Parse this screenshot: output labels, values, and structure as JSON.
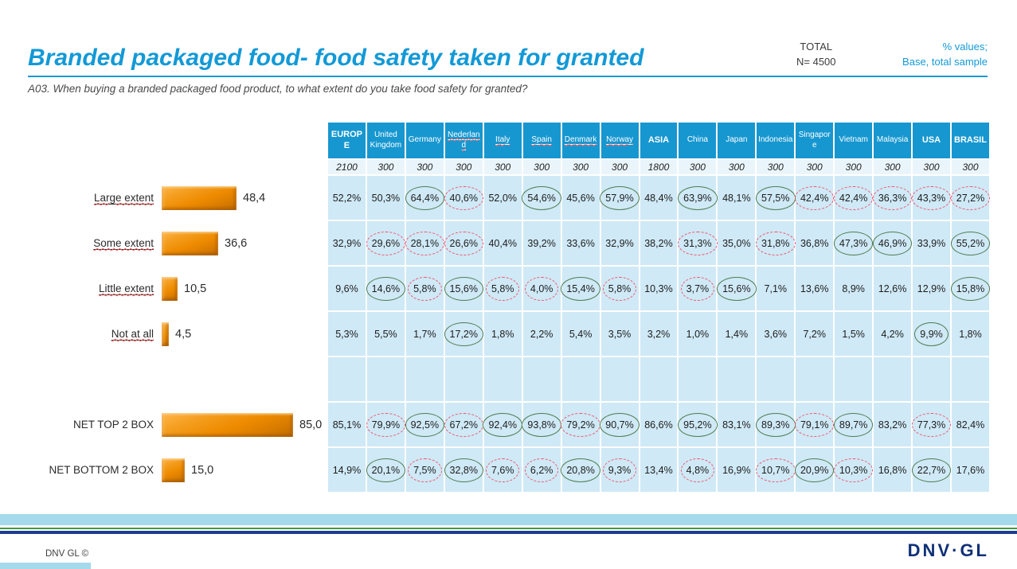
{
  "page": {
    "title": "Branded packaged food- food safety taken for granted",
    "question": "A03. When buying a branded packaged food product, to what extent do you take food safety for granted?",
    "total_label": "TOTAL",
    "total_n": "N= 4500",
    "note_line1": "% values;",
    "note_line2": "Base, total sample"
  },
  "chart_data": [
    {
      "type": "bar",
      "orientation": "horizontal",
      "title": "Total sample distribution (N=4500)",
      "categories": [
        "Large extent",
        "Some extent",
        "Little extent",
        "Not at all",
        "NET TOP 2 BOX",
        "NET BOTTOM 2 BOX"
      ],
      "values": [
        48.4,
        36.6,
        10.5,
        4.5,
        85.0,
        15.0
      ],
      "value_labels": [
        "48,4",
        "36,6",
        "10,5",
        "4,5",
        "85,0",
        "15,0"
      ],
      "squiggle": [
        true,
        true,
        true,
        true,
        false,
        false
      ],
      "bar_color": "#EF8A00",
      "xlim": [
        0,
        100
      ],
      "grid": false,
      "legend": "none"
    },
    {
      "type": "table",
      "circle_colors": {
        "green": "#4E7D52",
        "red": "#F2556D"
      },
      "columns": [
        {
          "label": "EUROPE",
          "n": "2100",
          "bold": true,
          "underline": false
        },
        {
          "label": "United Kingdom",
          "n": "300",
          "bold": false,
          "underline": false
        },
        {
          "label": "Germany",
          "n": "300",
          "bold": false,
          "underline": false
        },
        {
          "label": "Nederland",
          "n": "300",
          "bold": false,
          "underline": true
        },
        {
          "label": "Italy",
          "n": "300",
          "bold": false,
          "underline": true
        },
        {
          "label": "Spain",
          "n": "300",
          "bold": false,
          "underline": true
        },
        {
          "label": "Denmark",
          "n": "300",
          "bold": false,
          "underline": true
        },
        {
          "label": "Norway",
          "n": "300",
          "bold": false,
          "underline": true
        },
        {
          "label": "ASIA",
          "n": "1800",
          "bold": true,
          "underline": false
        },
        {
          "label": "China",
          "n": "300",
          "bold": false,
          "underline": false
        },
        {
          "label": "Japan",
          "n": "300",
          "bold": false,
          "underline": false
        },
        {
          "label": "Indonesia",
          "n": "300",
          "bold": false,
          "underline": false
        },
        {
          "label": "Singapore",
          "n": "300",
          "bold": false,
          "underline": false
        },
        {
          "label": "Vietnam",
          "n": "300",
          "bold": false,
          "underline": false
        },
        {
          "label": "Malaysia",
          "n": "300",
          "bold": false,
          "underline": false
        },
        {
          "label": "USA",
          "n": "300",
          "bold": true,
          "underline": false
        },
        {
          "label": "BRASIL",
          "n": "300",
          "bold": true,
          "underline": false
        }
      ],
      "rows": [
        {
          "label": "Large extent",
          "values": [
            "52,2%",
            "50,3%",
            "64,4%",
            "40,6%",
            "52,0%",
            "54,6%",
            "45,6%",
            "57,9%",
            "48,4%",
            "63,9%",
            "48,1%",
            "57,5%",
            "42,4%",
            "42,4%",
            "36,3%",
            "43,3%",
            "27,2%"
          ],
          "circles": [
            "",
            "",
            "green",
            "red",
            "",
            "green",
            "",
            "green",
            "",
            "green",
            "",
            "green",
            "red",
            "red",
            "red",
            "red",
            "red"
          ]
        },
        {
          "label": "Some extent",
          "values": [
            "32,9%",
            "29,6%",
            "28,1%",
            "26,6%",
            "40,4%",
            "39,2%",
            "33,6%",
            "32,9%",
            "38,2%",
            "31,3%",
            "35,0%",
            "31,8%",
            "36,8%",
            "47,3%",
            "46,9%",
            "33,9%",
            "55,2%"
          ],
          "circles": [
            "",
            "red",
            "red",
            "red",
            "",
            "",
            "",
            "",
            "",
            "red",
            "",
            "red",
            "",
            "green",
            "green",
            "",
            "green"
          ]
        },
        {
          "label": "Little extent",
          "values": [
            "9,6%",
            "14,6%",
            "5,8%",
            "15,6%",
            "5,8%",
            "4,0%",
            "15,4%",
            "5,8%",
            "10,3%",
            "3,7%",
            "15,6%",
            "7,1%",
            "13,6%",
            "8,9%",
            "12,6%",
            "12,9%",
            "15,8%"
          ],
          "circles": [
            "",
            "green",
            "red",
            "green",
            "red",
            "red",
            "green",
            "red",
            "",
            "red",
            "green",
            "",
            "",
            "",
            "",
            "",
            "green"
          ]
        },
        {
          "label": "Not at all",
          "values": [
            "5,3%",
            "5,5%",
            "1,7%",
            "17,2%",
            "1,8%",
            "2,2%",
            "5,4%",
            "3,5%",
            "3,2%",
            "1,0%",
            "1,4%",
            "3,6%",
            "7,2%",
            "1,5%",
            "4,2%",
            "9,9%",
            "1,8%"
          ],
          "circles": [
            "",
            "",
            "",
            "green",
            "",
            "",
            "",
            "",
            "",
            "",
            "",
            "",
            "",
            "",
            "",
            "green",
            ""
          ]
        },
        {
          "label": "",
          "empty": true
        },
        {
          "label": "NET TOP 2 BOX",
          "values": [
            "85,1%",
            "79,9%",
            "92,5%",
            "67,2%",
            "92,4%",
            "93,8%",
            "79,2%",
            "90,7%",
            "86,6%",
            "95,2%",
            "83,1%",
            "89,3%",
            "79,1%",
            "89,7%",
            "83,2%",
            "77,3%",
            "82,4%"
          ],
          "circles": [
            "",
            "red",
            "green",
            "red",
            "green",
            "green",
            "red",
            "green",
            "",
            "green",
            "",
            "green",
            "red",
            "green",
            "",
            "red",
            ""
          ]
        },
        {
          "label": "NET BOTTOM 2 BOX",
          "values": [
            "14,9%",
            "20,1%",
            "7,5%",
            "32,8%",
            "7,6%",
            "6,2%",
            "20,8%",
            "9,3%",
            "13,4%",
            "4,8%",
            "16,9%",
            "10,7%",
            "20,9%",
            "10,3%",
            "16,8%",
            "22,7%",
            "17,6%"
          ],
          "circles": [
            "",
            "green",
            "red",
            "green",
            "red",
            "red",
            "green",
            "red",
            "",
            "red",
            "",
            "red",
            "green",
            "red",
            "",
            "green",
            ""
          ]
        }
      ]
    }
  ],
  "footer": {
    "copyright": "DNV GL ©",
    "logo": "DNV·GL"
  },
  "colors": {
    "accent_blue": "#1399D6",
    "header_blue": "#1797D0",
    "cell_blue": "#CFE9F6",
    "bar_orange": "#EF8A00",
    "stripe_lightblue": "#A5D9EC",
    "stripe_green": "#3F9A3C",
    "stripe_navy": "#1D3D91",
    "logo_navy": "#0F3077"
  }
}
